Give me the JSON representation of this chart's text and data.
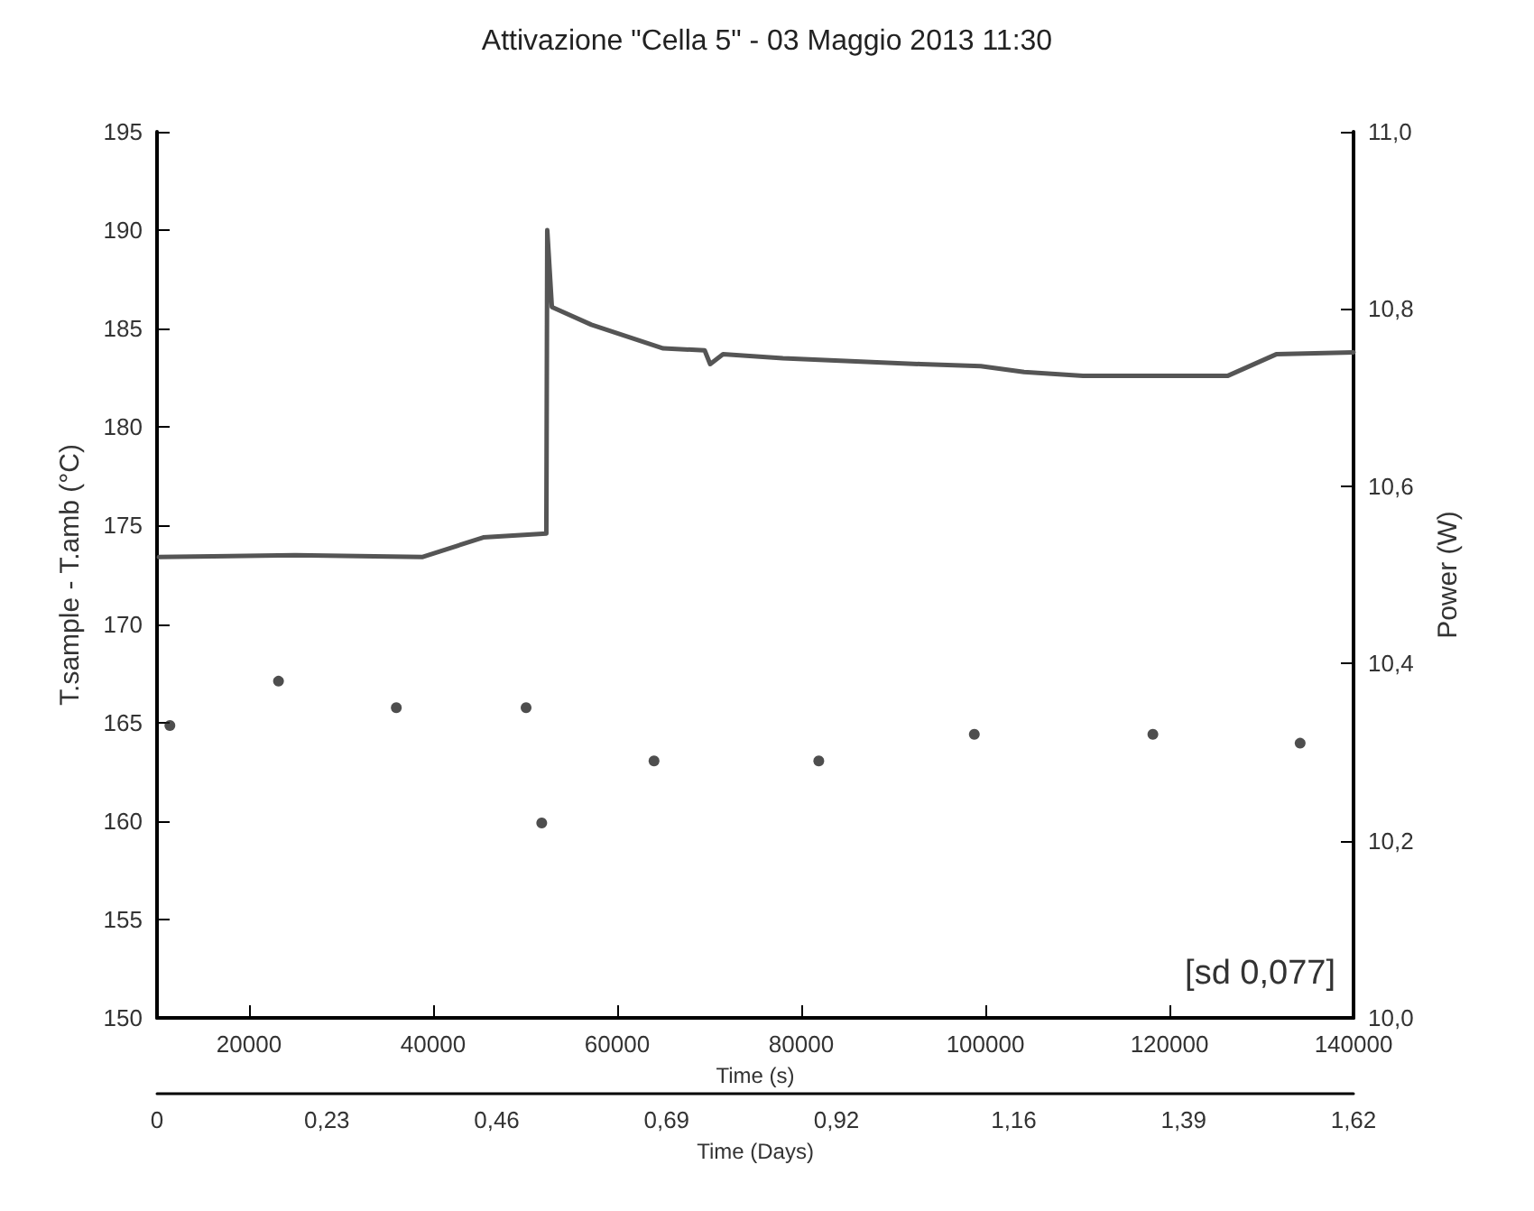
{
  "chart_data": {
    "type": "line",
    "title": "Attivazione \"Cella 5\" - 03 Maggio 2013 11:30",
    "xlabel": "Time (s)",
    "ylabel": "T.sample - T.amb (°C)",
    "y2label": "Power (W)",
    "x2label": "Time (Days)",
    "xlim": [
      10000,
      140000
    ],
    "xticks": [
      20000,
      40000,
      60000,
      80000,
      100000,
      120000,
      140000
    ],
    "x2lim": [
      0,
      1.62
    ],
    "x2ticks": [
      0,
      {
        "value": 0.23,
        "label": "0,23"
      },
      {
        "value": 0.46,
        "label": "0,46"
      },
      {
        "value": 0.69,
        "label": "0,69"
      },
      {
        "value": 0.92,
        "label": "0,92"
      },
      {
        "value": 1.16,
        "label": "1,16"
      },
      {
        "value": 1.39,
        "label": "1,39"
      },
      {
        "value": 1.62,
        "label": "1,62"
      }
    ],
    "ylim": [
      150,
      195
    ],
    "yticks": [
      150,
      155,
      160,
      165,
      170,
      175,
      180,
      185,
      190,
      195
    ],
    "y2lim": [
      10.0,
      11.0
    ],
    "y2ticks": [
      {
        "value": 10.0,
        "label": "10,0"
      },
      {
        "value": 10.2,
        "label": "10,2"
      },
      {
        "value": 10.4,
        "label": "10,4"
      },
      {
        "value": 10.6,
        "label": "10,6"
      },
      {
        "value": 10.8,
        "label": "10,8"
      },
      {
        "value": 11.0,
        "label": "11,0"
      }
    ],
    "grid": false,
    "series": [
      {
        "color": "#555555",
        "marker": "none",
        "line_style": "solid",
        "x": [
          10200,
          25000,
          38800,
          45450,
          52300,
          52400,
          52900,
          57200,
          65000,
          69500,
          70100,
          71500,
          78000,
          93000,
          99500,
          104200,
          110600,
          126300,
          131600,
          140000
        ],
        "values": [
          173.4,
          173.5,
          173.4,
          174.4,
          174.6,
          190.0,
          186.1,
          185.2,
          184.0,
          183.9,
          183.2,
          183.7,
          183.5,
          183.2,
          183.1,
          182.8,
          182.6,
          182.6,
          183.7,
          183.8
        ]
      },
      {
        "type": "scatter",
        "axis": "y2",
        "color": "#222222",
        "marker": "circle",
        "x": [
          11400,
          23200,
          36000,
          50100,
          51800,
          64000,
          81900,
          98800,
          118200,
          134200
        ],
        "values": [
          10.33,
          10.38,
          10.35,
          10.35,
          10.22,
          10.29,
          10.29,
          10.32,
          10.32,
          10.31
        ]
      }
    ],
    "annotations": [
      "[sd 0,077]"
    ]
  }
}
